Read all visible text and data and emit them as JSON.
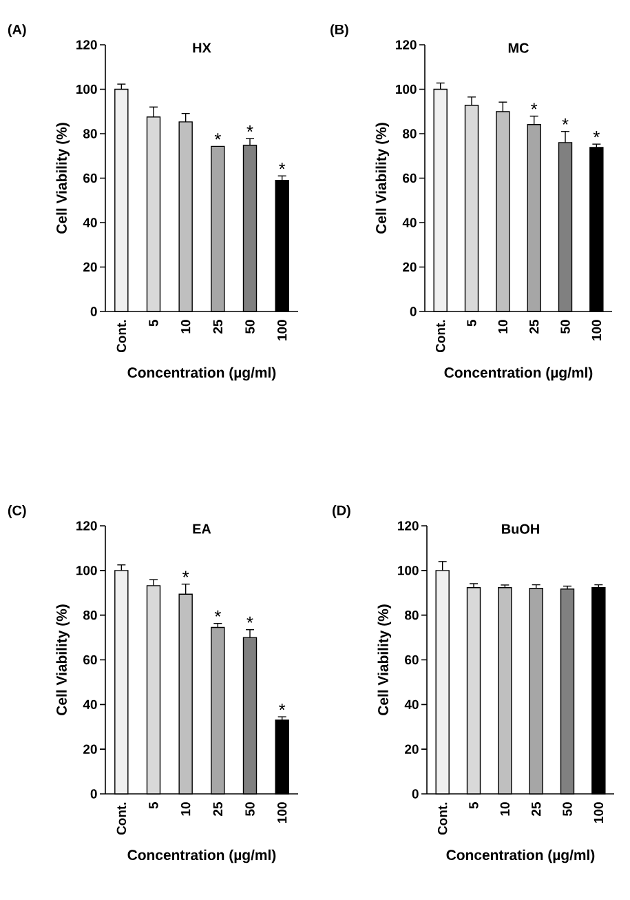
{
  "chart_data": [
    {
      "type": "bar",
      "title": "HX",
      "xlabel": "Concentration (µg/ml)",
      "ylabel": "Cell Viability (%)",
      "categories": [
        "Cont.",
        "5",
        "10",
        "25",
        "50",
        "100"
      ],
      "values": [
        100,
        87.5,
        85.3,
        74.3,
        74.8,
        59
      ],
      "errors": [
        2.3,
        4.5,
        3.8,
        null,
        3,
        2
      ],
      "colors": [
        "#f0f0f0",
        "#d9d9d9",
        "#bfbfbf",
        "#a6a6a6",
        "#808080",
        "#000000"
      ],
      "ylim": [
        0,
        120
      ],
      "yticks": [
        0,
        20,
        40,
        60,
        80,
        100,
        120
      ],
      "annotations": [
        "(A)",
        {
          "text": "*",
          "x": "25",
          "y": 74.3
        },
        {
          "text": "*",
          "x": "50",
          "y": 77.8
        },
        {
          "text": "*",
          "x": "100",
          "y": 61
        }
      ]
    },
    {
      "type": "bar",
      "title": "MC",
      "xlabel": "Concentration (µg/ml)",
      "ylabel": "Cell Viability (%)",
      "categories": [
        "Cont.",
        "5",
        "10",
        "25",
        "50",
        "100"
      ],
      "values": [
        100,
        92.8,
        89.9,
        84.1,
        76,
        73.8
      ],
      "errors": [
        2.8,
        3.7,
        4.3,
        3.8,
        5,
        1.5
      ],
      "colors": [
        "#f0f0f0",
        "#d9d9d9",
        "#bfbfbf",
        "#a6a6a6",
        "#808080",
        "#000000"
      ],
      "ylim": [
        0,
        120
      ],
      "yticks": [
        0,
        20,
        40,
        60,
        80,
        100,
        120
      ],
      "annotations": [
        "(B)",
        {
          "text": "*",
          "x": "25",
          "y": 87.9
        },
        {
          "text": "*",
          "x": "50",
          "y": 81
        },
        {
          "text": "*",
          "x": "100",
          "y": 75.3
        }
      ]
    },
    {
      "type": "bar",
      "title": "EA",
      "xlabel": "Concentration (µg/ml)",
      "ylabel": "Cell Viability (%)",
      "categories": [
        "Cont.",
        "5",
        "10",
        "25",
        "50",
        "100"
      ],
      "values": [
        100,
        93.2,
        89.4,
        74.5,
        70,
        33
      ],
      "errors": [
        2.5,
        2.7,
        4.5,
        1.8,
        3.5,
        1.5
      ],
      "colors": [
        "#f0f0f0",
        "#d9d9d9",
        "#bfbfbf",
        "#a6a6a6",
        "#808080",
        "#000000"
      ],
      "ylim": [
        0,
        120
      ],
      "yticks": [
        0,
        20,
        40,
        60,
        80,
        100,
        120
      ],
      "annotations": [
        "(C)",
        {
          "text": "*",
          "x": "10",
          "y": 93.9
        },
        {
          "text": "*",
          "x": "25",
          "y": 76.3
        },
        {
          "text": "*",
          "x": "50",
          "y": 73.5
        },
        {
          "text": "*",
          "x": "100",
          "y": 34.5
        }
      ]
    },
    {
      "type": "bar",
      "title": "BuOH",
      "xlabel": "Concentration (µg/ml)",
      "ylabel": "Cell Viability (%)",
      "categories": [
        "Cont.",
        "5",
        "10",
        "25",
        "50",
        "100"
      ],
      "values": [
        100,
        92.3,
        92.3,
        92,
        91.7,
        92.3
      ],
      "errors": [
        4,
        1.8,
        1.2,
        1.6,
        1.3,
        1.3
      ],
      "colors": [
        "#f0f0f0",
        "#d9d9d9",
        "#bfbfbf",
        "#a6a6a6",
        "#808080",
        "#000000"
      ],
      "ylim": [
        0,
        120
      ],
      "yticks": [
        0,
        20,
        40,
        60,
        80,
        100,
        120
      ],
      "annotations": [
        "(D)"
      ]
    }
  ]
}
